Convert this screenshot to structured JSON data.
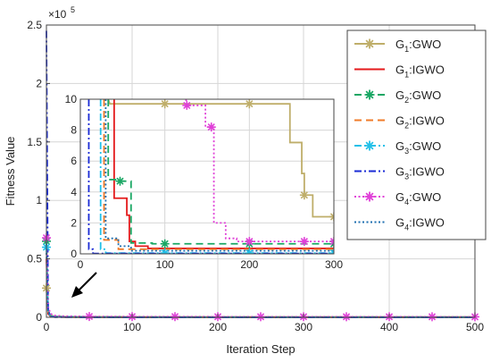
{
  "chart_data": {
    "type": "line",
    "xlabel": "Iteration Step",
    "ylabel": "Fitness Value",
    "xlim": [
      0,
      500
    ],
    "ylim": [
      0,
      250000
    ],
    "xticks": [
      "0",
      "100",
      "200",
      "300",
      "400",
      "500"
    ],
    "yticks": [
      "0",
      "0.5",
      "1",
      "1.5",
      "2",
      "2.5"
    ],
    "y_exponent": {
      "base": "×10",
      "power": "5"
    },
    "grid": true,
    "legend": {
      "placement": "right",
      "entries": [
        {
          "sub": "1",
          "alg": "GWO",
          "prefix": "G",
          "color": "#bfae6a",
          "dash": "solid",
          "marker": "star"
        },
        {
          "sub": "1",
          "alg": "IGWO",
          "prefix": "G",
          "color": "#e41a1c",
          "dash": "solid",
          "marker": "none"
        },
        {
          "sub": "2",
          "alg": "GWO",
          "prefix": "G",
          "color": "#1aa764",
          "dash": "dash",
          "marker": "star"
        },
        {
          "sub": "2",
          "alg": "IGWO",
          "prefix": "G",
          "color": "#f07b2a",
          "dash": "dash",
          "marker": "none"
        },
        {
          "sub": "3",
          "alg": "GWO",
          "prefix": "G",
          "color": "#22c0e8",
          "dash": "dashdot",
          "marker": "star"
        },
        {
          "sub": "3",
          "alg": "IGWO",
          "prefix": "G",
          "color": "#1a2bd6",
          "dash": "dashdot",
          "marker": "none"
        },
        {
          "sub": "4",
          "alg": "GWO",
          "prefix": "G",
          "color": "#e040d8",
          "dash": "dot",
          "marker": "star"
        },
        {
          "sub": "4",
          "alg": "IGWO",
          "prefix": "G",
          "color": "#1f6fb0",
          "dash": "dot",
          "marker": "none"
        }
      ]
    },
    "series": [
      {
        "points": [
          [
            0,
            25000
          ],
          [
            2,
            4000
          ],
          [
            5,
            1500
          ],
          [
            10,
            900
          ],
          [
            20,
            600
          ],
          [
            50,
            450
          ],
          [
            100,
            400
          ],
          [
            200,
            380
          ],
          [
            300,
            360
          ],
          [
            500,
            350
          ]
        ]
      },
      {
        "points": [
          [
            0,
            50000
          ],
          [
            2,
            3000
          ],
          [
            5,
            600
          ],
          [
            10,
            300
          ],
          [
            50,
            100
          ],
          [
            100,
            40
          ],
          [
            500,
            20
          ]
        ]
      },
      {
        "points": [
          [
            0,
            65000
          ],
          [
            2,
            5000
          ],
          [
            5,
            1000
          ],
          [
            10,
            500
          ],
          [
            50,
            300
          ],
          [
            100,
            200
          ],
          [
            500,
            150
          ]
        ]
      },
      {
        "points": [
          [
            0,
            70000
          ],
          [
            2,
            3500
          ],
          [
            5,
            800
          ],
          [
            10,
            200
          ],
          [
            50,
            60
          ],
          [
            100,
            40
          ],
          [
            500,
            20
          ]
        ]
      },
      {
        "points": [
          [
            0,
            60000
          ],
          [
            2,
            4000
          ],
          [
            5,
            800
          ],
          [
            10,
            300
          ],
          [
            50,
            80
          ],
          [
            100,
            60
          ],
          [
            500,
            40
          ]
        ]
      },
      {
        "points": [
          [
            0,
            245000
          ],
          [
            1,
            120000
          ],
          [
            2,
            6000
          ],
          [
            5,
            800
          ],
          [
            10,
            150
          ],
          [
            50,
            30
          ],
          [
            500,
            10
          ]
        ]
      },
      {
        "points": [
          [
            0,
            68000
          ],
          [
            2,
            9000
          ],
          [
            5,
            3000
          ],
          [
            10,
            1500
          ],
          [
            20,
            1000
          ],
          [
            50,
            700
          ],
          [
            100,
            600
          ],
          [
            200,
            500
          ],
          [
            300,
            450
          ],
          [
            500,
            400
          ]
        ]
      },
      {
        "points": [
          [
            0,
            55000
          ],
          [
            2,
            4500
          ],
          [
            5,
            900
          ],
          [
            10,
            300
          ],
          [
            50,
            80
          ],
          [
            100,
            50
          ],
          [
            500,
            30
          ]
        ]
      }
    ],
    "inset": {
      "xlim": [
        0,
        300
      ],
      "ylim": [
        0,
        10
      ],
      "xticks": [
        "0",
        "100",
        "200",
        "300"
      ],
      "yticks": [
        "0",
        "2",
        "4",
        "6",
        "8",
        "10"
      ],
      "series": [
        {
          "points": [
            [
              33,
              10
            ],
            [
              35,
              9.7
            ],
            [
              100,
              9.7
            ],
            [
              200,
              9.7
            ],
            [
              248,
              9.7
            ],
            [
              248,
              7.2
            ],
            [
              262,
              7.2
            ],
            [
              262,
              5.2
            ],
            [
              265,
              5.2
            ],
            [
              265,
              3.8
            ],
            [
              275,
              3.8
            ],
            [
              275,
              2.4
            ],
            [
              300,
              2.4
            ]
          ]
        },
        {
          "points": [
            [
              40,
              10
            ],
            [
              40,
              3.6
            ],
            [
              55,
              3.6
            ],
            [
              55,
              2.5
            ],
            [
              58,
              2.5
            ],
            [
              58,
              0.8
            ],
            [
              65,
              0.8
            ],
            [
              65,
              0.5
            ],
            [
              80,
              0.5
            ],
            [
              80,
              0.35
            ],
            [
              300,
              0.35
            ]
          ]
        },
        {
          "points": [
            [
              33,
              10
            ],
            [
              33,
              4.8
            ],
            [
              47,
              4.8
            ],
            [
              47,
              4.7
            ],
            [
              60,
              4.7
            ],
            [
              60,
              0.7
            ],
            [
              85,
              0.7
            ],
            [
              85,
              0.65
            ],
            [
              300,
              0.65
            ]
          ]
        },
        {
          "points": [
            [
              28,
              10
            ],
            [
              28,
              0.9
            ],
            [
              45,
              0.9
            ],
            [
              45,
              0.3
            ],
            [
              300,
              0.3
            ]
          ]
        },
        {
          "points": [
            [
              24,
              10
            ],
            [
              24,
              0.3
            ],
            [
              30,
              0.3
            ],
            [
              30,
              0.05
            ],
            [
              300,
              0.05
            ]
          ]
        },
        {
          "points": [
            [
              10,
              10
            ],
            [
              10,
              0.3
            ],
            [
              15,
              0.3
            ],
            [
              15,
              0.02
            ],
            [
              300,
              0.02
            ]
          ]
        },
        {
          "points": [
            [
              125,
              10
            ],
            [
              126,
              9.6
            ],
            [
              148,
              9.6
            ],
            [
              148,
              8.2
            ],
            [
              158,
              8.2
            ],
            [
              158,
              2.0
            ],
            [
              172,
              2.0
            ],
            [
              172,
              1.0
            ],
            [
              185,
              1.0
            ],
            [
              185,
              0.8
            ],
            [
              300,
              0.8
            ]
          ]
        },
        {
          "points": [
            [
              30,
              10
            ],
            [
              30,
              1.0
            ],
            [
              45,
              1.0
            ],
            [
              45,
              0.5
            ],
            [
              60,
              0.5
            ],
            [
              60,
              0.2
            ],
            [
              300,
              0.2
            ]
          ]
        }
      ]
    }
  }
}
